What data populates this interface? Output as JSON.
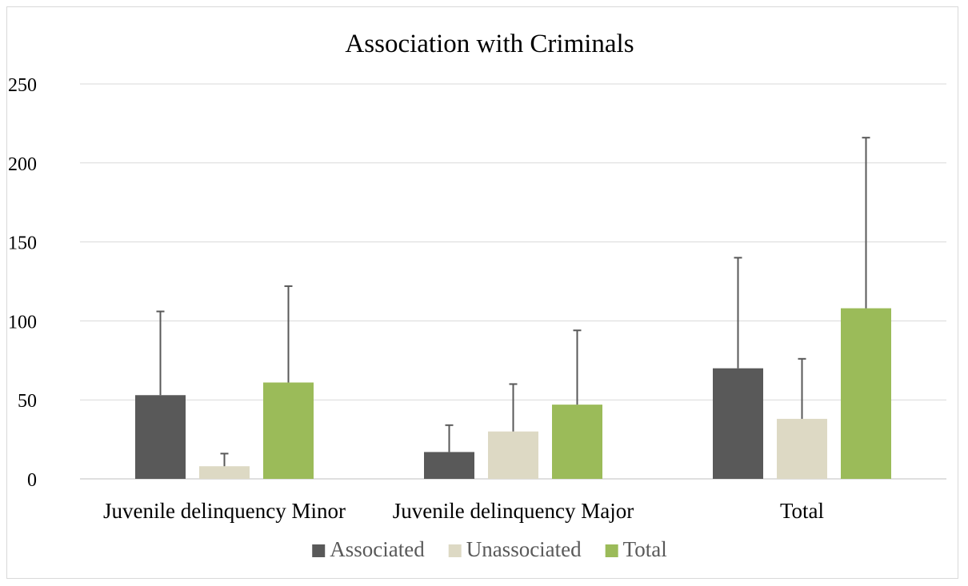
{
  "chart_data": {
    "type": "bar",
    "title": "Association with Criminals",
    "categories": [
      "Juvenile delinquency Minor",
      "Juvenile delinquency Major",
      "Total"
    ],
    "series": [
      {
        "name": "Associated",
        "color": "#595959",
        "values": [
          53,
          17,
          70
        ],
        "error_upper": [
          106,
          34,
          140
        ]
      },
      {
        "name": "Unassociated",
        "color": "#ddd9c4",
        "values": [
          8,
          30,
          38
        ],
        "error_upper": [
          16,
          60,
          76
        ]
      },
      {
        "name": "Total",
        "color": "#9bbb59",
        "values": [
          61,
          47,
          108
        ],
        "error_upper": [
          122,
          94,
          216
        ]
      }
    ],
    "ylim": [
      0,
      250
    ],
    "yticks": [
      0,
      50,
      100,
      150,
      200,
      250
    ],
    "grid": true,
    "legend_position": "bottom",
    "xlabel": "",
    "ylabel": ""
  }
}
